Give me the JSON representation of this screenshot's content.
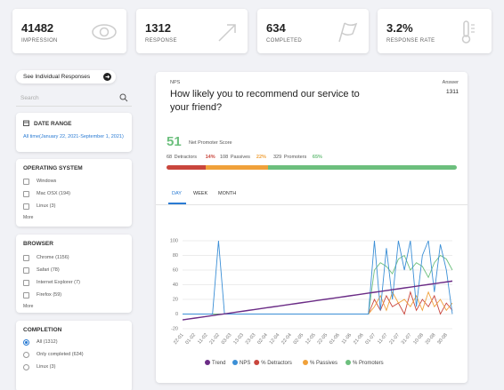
{
  "stats": [
    {
      "value": "41482",
      "label": "IMPRESSION"
    },
    {
      "value": "1312",
      "label": "RESPONSE"
    },
    {
      "value": "634",
      "label": "COMPLETED"
    },
    {
      "value": "3.2%",
      "label": "RESPONSE RATE"
    }
  ],
  "sidebar": {
    "button": "See Individual Responses",
    "search": "Search",
    "date_range": {
      "title": "DATE RANGE",
      "value": "All time(January 22, 2021-September 1, 2021)"
    },
    "os": {
      "title": "OPERATING SYSTEM",
      "items": [
        "Windows",
        "Mac OSX (194)",
        "Linux (3)"
      ],
      "more": "More"
    },
    "browser": {
      "title": "BROWSER",
      "items": [
        "Chrome (1156)",
        "Safari (78)",
        "Internet Explorer (7)",
        "Firefox (59)"
      ],
      "more": "More"
    },
    "completion": {
      "title": "COMPLETION",
      "items": [
        "All (1312)",
        "Only completed (634)",
        "Linux (3)"
      ]
    }
  },
  "nps": {
    "tag": "NPS",
    "question": "How likely you to recommend our service to your friend?",
    "answer_label": "Answer",
    "answer": "1311",
    "score": "51",
    "score_label": "Net Promoter Score",
    "breakdown": [
      {
        "count": 68,
        "label": "Detractors",
        "pct": "14%",
        "color": "#c9463d"
      },
      {
        "count": 108,
        "label": "Passives",
        "pct": "22%",
        "color": "#f0a13a"
      },
      {
        "count": 329,
        "label": "Promoters",
        "pct": "65%",
        "color": "#6cbf7d"
      }
    ]
  },
  "tabs": [
    "DAY",
    "WEEK",
    "MONTH"
  ],
  "chart_data": {
    "type": "line",
    "grid": true,
    "categories": [
      "22-01",
      null,
      "01-02",
      null,
      "11-02",
      null,
      "21-02",
      null,
      "03-03",
      null,
      "13-03",
      null,
      "23-03",
      null,
      "02-04",
      null,
      "12-04",
      null,
      "22-04",
      null,
      "02-05",
      null,
      "12-05",
      null,
      "22-05",
      null,
      "01-06",
      null,
      "11-06",
      null,
      "21-06",
      null,
      "01-07",
      null,
      "11-07",
      null,
      "21-07",
      null,
      "31-07",
      null,
      "10-08",
      null,
      "20-08",
      null,
      "30-08",
      null
    ],
    "ylim": [
      -20,
      100
    ],
    "yticks": [
      -20,
      0,
      20,
      40,
      60,
      80,
      100
    ],
    "series": [
      {
        "name": "Trend",
        "color": "#6b2c86",
        "values": [
          -8,
          -6.8,
          -5.6,
          -4.5,
          -3.3,
          -2.1,
          -0.9,
          0.2,
          1.4,
          2.6,
          3.8,
          5.0,
          6.1,
          7.3,
          8.5,
          9.7,
          10.8,
          12.0,
          13.2,
          14.4,
          15.6,
          16.7,
          17.9,
          19.1,
          20.3,
          21.4,
          22.6,
          23.8,
          25.0,
          26.2,
          27.3,
          28.5,
          29.7,
          30.9,
          32.0,
          33.2,
          34.4,
          35.6,
          36.8,
          37.9,
          39.1,
          40.3,
          41.5,
          42.7,
          43.8,
          45.0
        ]
      },
      {
        "name": "NPS",
        "color": "#3b8fd6",
        "values": [
          0,
          0,
          0,
          0,
          0,
          0,
          100,
          0,
          0,
          0,
          0,
          0,
          0,
          0,
          0,
          0,
          0,
          0,
          0,
          0,
          0,
          0,
          0,
          0,
          0,
          0,
          0,
          0,
          0,
          0,
          0,
          0,
          100,
          5,
          90,
          20,
          100,
          60,
          100,
          10,
          80,
          100,
          30,
          95,
          60,
          0
        ]
      },
      {
        "name": "% Detractors",
        "color": "#c9463d",
        "values": [
          0,
          0,
          0,
          0,
          0,
          0,
          0,
          0,
          0,
          0,
          0,
          0,
          0,
          0,
          0,
          0,
          0,
          0,
          0,
          0,
          0,
          0,
          0,
          0,
          0,
          0,
          0,
          0,
          0,
          0,
          0,
          0,
          20,
          5,
          25,
          10,
          15,
          0,
          30,
          5,
          20,
          10,
          25,
          0,
          15,
          5
        ]
      },
      {
        "name": "% Passives",
        "color": "#f0a13a",
        "values": [
          0,
          0,
          0,
          0,
          0,
          0,
          0,
          0,
          0,
          0,
          0,
          0,
          0,
          0,
          0,
          0,
          0,
          0,
          0,
          0,
          0,
          0,
          0,
          0,
          0,
          0,
          0,
          0,
          0,
          0,
          0,
          0,
          10,
          25,
          5,
          30,
          15,
          20,
          10,
          25,
          5,
          30,
          10,
          20,
          5,
          15
        ]
      },
      {
        "name": "% Promoters",
        "color": "#6cbf7d",
        "values": [
          0,
          0,
          0,
          0,
          0,
          0,
          0,
          0,
          0,
          0,
          0,
          0,
          0,
          0,
          0,
          0,
          0,
          0,
          0,
          0,
          0,
          0,
          0,
          0,
          0,
          0,
          0,
          0,
          0,
          0,
          0,
          0,
          60,
          70,
          65,
          55,
          75,
          80,
          60,
          70,
          65,
          50,
          70,
          80,
          75,
          60
        ]
      }
    ]
  }
}
